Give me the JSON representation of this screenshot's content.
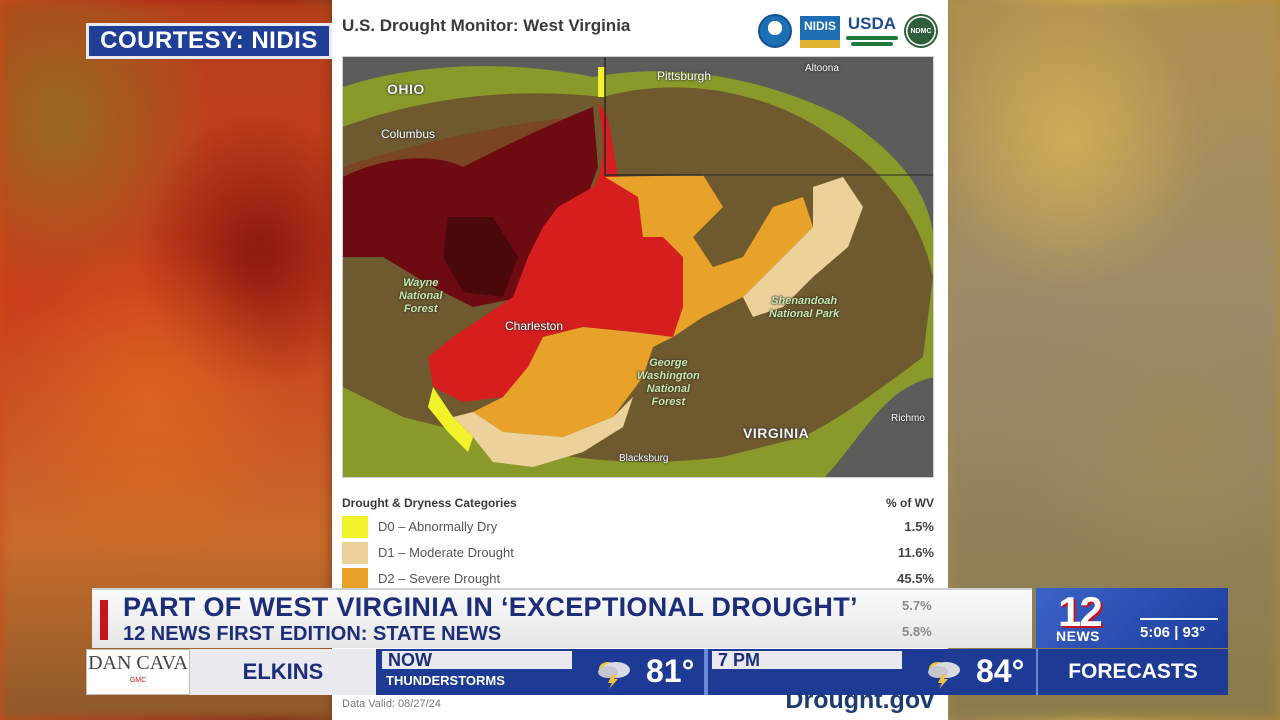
{
  "courtesy": "COURTESY: NIDIS",
  "card": {
    "title": "U.S. Drought Monitor: West Virginia",
    "logos": {
      "noaa": "NOAA",
      "nidis": "NIDIS",
      "usda": "USDA",
      "ndmc": "NDMC"
    },
    "map_labels": {
      "ohio": "OHIO",
      "pittsburgh": "Pittsburgh",
      "altoona": "Altoona",
      "columbus": "Columbus",
      "wayne": "Wayne\nNational\nForest",
      "charleston": "Charleston",
      "shenandoah": "Shenandoah\nNational Park",
      "george_washington": "George\nWashington\nNational\nForest",
      "virginia": "VIRGINIA",
      "richmond": "Richmo",
      "blacksburg": "Blacksburg"
    },
    "legend": {
      "heading": "Drought & Dryness Categories",
      "pct_heading": "% of WV",
      "rows": [
        {
          "label": "D0 – Abnormally Dry",
          "value": "1.5%",
          "color": "#f2f22a"
        },
        {
          "label": "D1 – Moderate Drought",
          "value": "11.6%",
          "color": "#ecd19a"
        },
        {
          "label": "D2 – Severe Drought",
          "value": "45.5%",
          "color": "#e8a22a"
        }
      ],
      "partial_values": [
        "5.7%",
        "5.8%"
      ]
    },
    "data_valid": "Data Valid: 08/27/24",
    "source": "Drought.gov"
  },
  "lower_third": {
    "headline": "PART OF WEST VIRGINIA IN ‘EXCEPTIONAL DROUGHT’",
    "subhead": "12 NEWS FIRST EDITION: STATE NEWS",
    "station_number": "12",
    "station_name": "NEWS",
    "time_temp": "5:06 | 93°"
  },
  "weather_bar": {
    "sponsor_main": "DAN CAVA",
    "sponsor_sub": "GMC",
    "city": "ELKINS",
    "now": {
      "label": "NOW",
      "condition": "THUNDERSTORMS",
      "temp": "81°",
      "icon": "thunderstorm-icon"
    },
    "later": {
      "label": "7 PM",
      "temp": "84°",
      "icon": "thunderstorm-icon"
    },
    "forecasts": "FORECASTS"
  },
  "colors": {
    "brand_blue": "#1d3b94",
    "headline_blue": "#1c2e7a",
    "accent_red": "#c4161c",
    "d3_red": "#d71e1e",
    "d4_dark_red": "#6e0b12"
  }
}
